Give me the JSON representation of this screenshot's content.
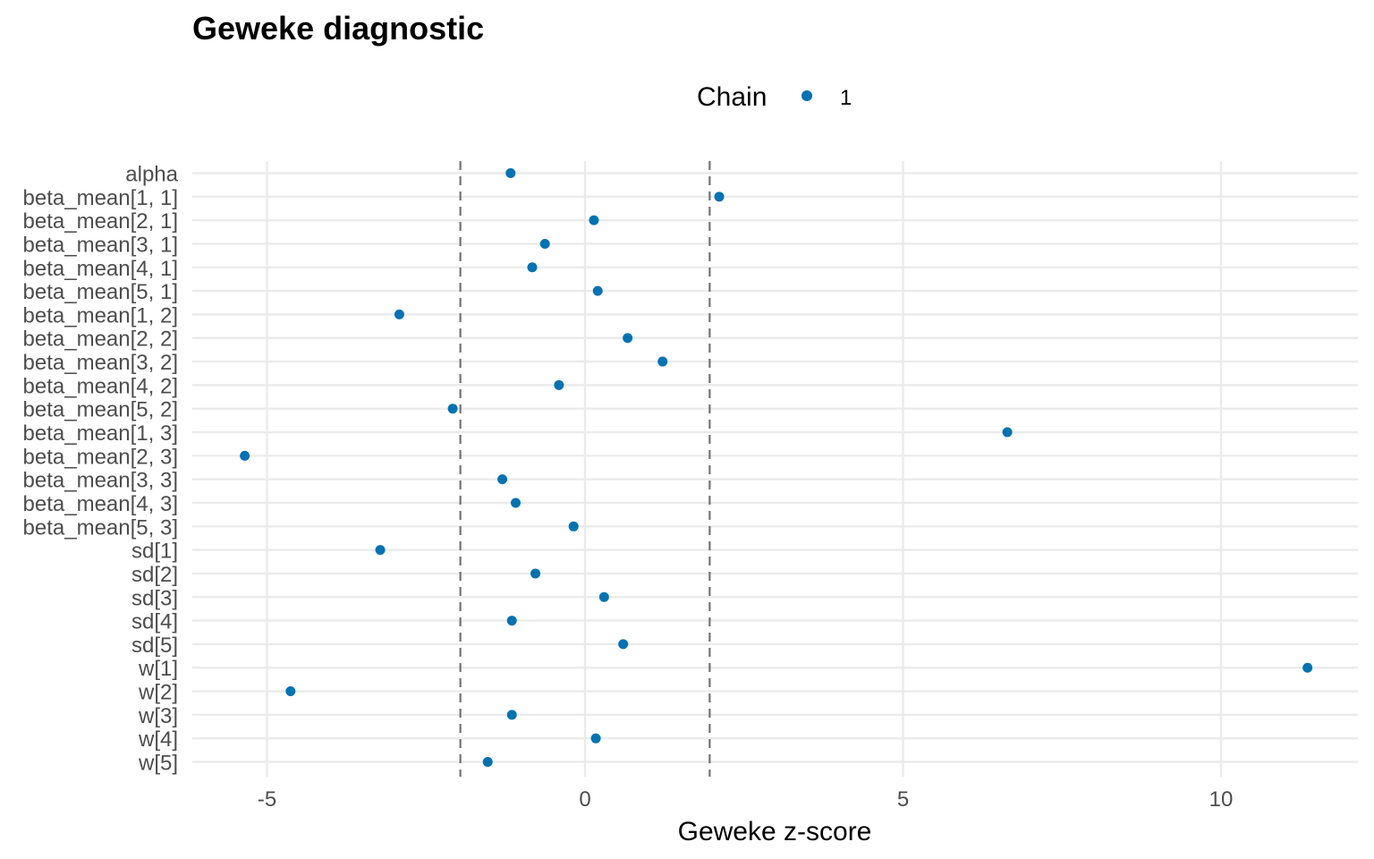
{
  "chart_data": {
    "type": "scatter",
    "title": "Geweke diagnostic",
    "xlabel": "Geweke z-score",
    "ylabel": "",
    "legend": {
      "title": "Chain",
      "entries": [
        "1"
      ],
      "position": "top"
    },
    "series": [
      {
        "name": "1",
        "color": "#0072b2",
        "points": [
          {
            "param": "alpha",
            "z": -1.17
          },
          {
            "param": "beta_mean[1, 1]",
            "z": 2.11
          },
          {
            "param": "beta_mean[2, 1]",
            "z": 0.14
          },
          {
            "param": "beta_mean[3, 1]",
            "z": -0.63
          },
          {
            "param": "beta_mean[4, 1]",
            "z": -0.83
          },
          {
            "param": "beta_mean[5, 1]",
            "z": 0.2
          },
          {
            "param": "beta_mean[1, 2]",
            "z": -2.92
          },
          {
            "param": "beta_mean[2, 2]",
            "z": 0.67
          },
          {
            "param": "beta_mean[3, 2]",
            "z": 1.22
          },
          {
            "param": "beta_mean[4, 2]",
            "z": -0.41
          },
          {
            "param": "beta_mean[5, 2]",
            "z": -2.08
          },
          {
            "param": "beta_mean[1, 3]",
            "z": 6.64
          },
          {
            "param": "beta_mean[2, 3]",
            "z": -5.35
          },
          {
            "param": "beta_mean[3, 3]",
            "z": -1.3
          },
          {
            "param": "beta_mean[4, 3]",
            "z": -1.09
          },
          {
            "param": "beta_mean[5, 3]",
            "z": -0.18
          },
          {
            "param": "sd[1]",
            "z": -3.22
          },
          {
            "param": "sd[2]",
            "z": -0.78
          },
          {
            "param": "sd[3]",
            "z": 0.3
          },
          {
            "param": "sd[4]",
            "z": -1.15
          },
          {
            "param": "sd[5]",
            "z": 0.6
          },
          {
            "param": "w[1]",
            "z": 11.36
          },
          {
            "param": "w[2]",
            "z": -4.63
          },
          {
            "param": "w[3]",
            "z": -1.15
          },
          {
            "param": "w[4]",
            "z": 0.17
          },
          {
            "param": "w[5]",
            "z": -1.53
          }
        ]
      }
    ],
    "categories": [
      "alpha",
      "beta_mean[1, 1]",
      "beta_mean[2, 1]",
      "beta_mean[3, 1]",
      "beta_mean[4, 1]",
      "beta_mean[5, 1]",
      "beta_mean[1, 2]",
      "beta_mean[2, 2]",
      "beta_mean[3, 2]",
      "beta_mean[4, 2]",
      "beta_mean[5, 2]",
      "beta_mean[1, 3]",
      "beta_mean[2, 3]",
      "beta_mean[3, 3]",
      "beta_mean[4, 3]",
      "beta_mean[5, 3]",
      "sd[1]",
      "sd[2]",
      "sd[3]",
      "sd[4]",
      "sd[5]",
      "w[1]",
      "w[2]",
      "w[3]",
      "w[4]",
      "w[5]"
    ],
    "xticks": [
      -5,
      0,
      5,
      10
    ],
    "xtick_labels": [
      "-5",
      "0",
      "5",
      "10"
    ],
    "xlim": [
      -6.2,
      12.1
    ],
    "reference_lines": [
      -1.96,
      1.96
    ],
    "grid": true
  }
}
